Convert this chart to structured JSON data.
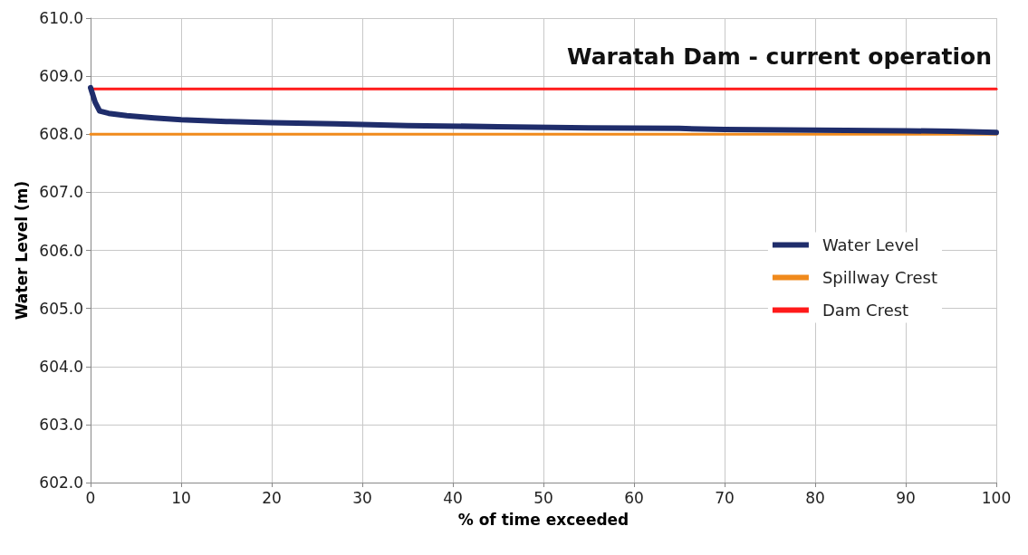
{
  "chart_data": {
    "type": "line",
    "title": "Waratah Dam - current operation",
    "xlabel": "% of time exceeded",
    "ylabel": "Water Level (m)",
    "xlim": [
      0,
      100
    ],
    "xticks": [
      0,
      10,
      20,
      30,
      40,
      50,
      60,
      70,
      80,
      90,
      100
    ],
    "ylim": [
      602,
      610
    ],
    "yticks": [
      {
        "value": 602,
        "label": "602.0"
      },
      {
        "value": 603,
        "label": "603.0"
      },
      {
        "value": 604,
        "label": "604.0"
      },
      {
        "value": 605,
        "label": "605.0"
      },
      {
        "value": 606,
        "label": "606.0"
      },
      {
        "value": 607,
        "label": "607.0"
      },
      {
        "value": 608,
        "label": "608.0"
      },
      {
        "value": 609,
        "label": "609.0"
      },
      {
        "value": 610,
        "label": "610.0"
      }
    ],
    "grid": true,
    "legend": "right",
    "marker": "none",
    "line_style": "solid",
    "series": [
      {
        "name": "Water Level",
        "color": "#1f2d6b",
        "x": [
          0,
          0.5,
          1,
          2,
          4,
          7,
          10,
          15,
          20,
          27,
          35,
          45,
          55,
          65,
          70,
          80,
          90,
          95,
          100
        ],
        "values": [
          608.8,
          608.55,
          608.4,
          608.36,
          608.32,
          608.28,
          608.25,
          608.22,
          608.2,
          608.18,
          608.15,
          608.13,
          608.11,
          608.1,
          608.08,
          608.07,
          608.06,
          608.05,
          608.03
        ]
      },
      {
        "name": "Spillway Crest",
        "color": "#f08a1c",
        "x": [
          0,
          100
        ],
        "values": [
          608.0,
          608.0
        ]
      },
      {
        "name": "Dam Crest",
        "color": "#ff1a1a",
        "x": [
          0,
          100
        ],
        "values": [
          608.78,
          608.78
        ]
      }
    ]
  }
}
